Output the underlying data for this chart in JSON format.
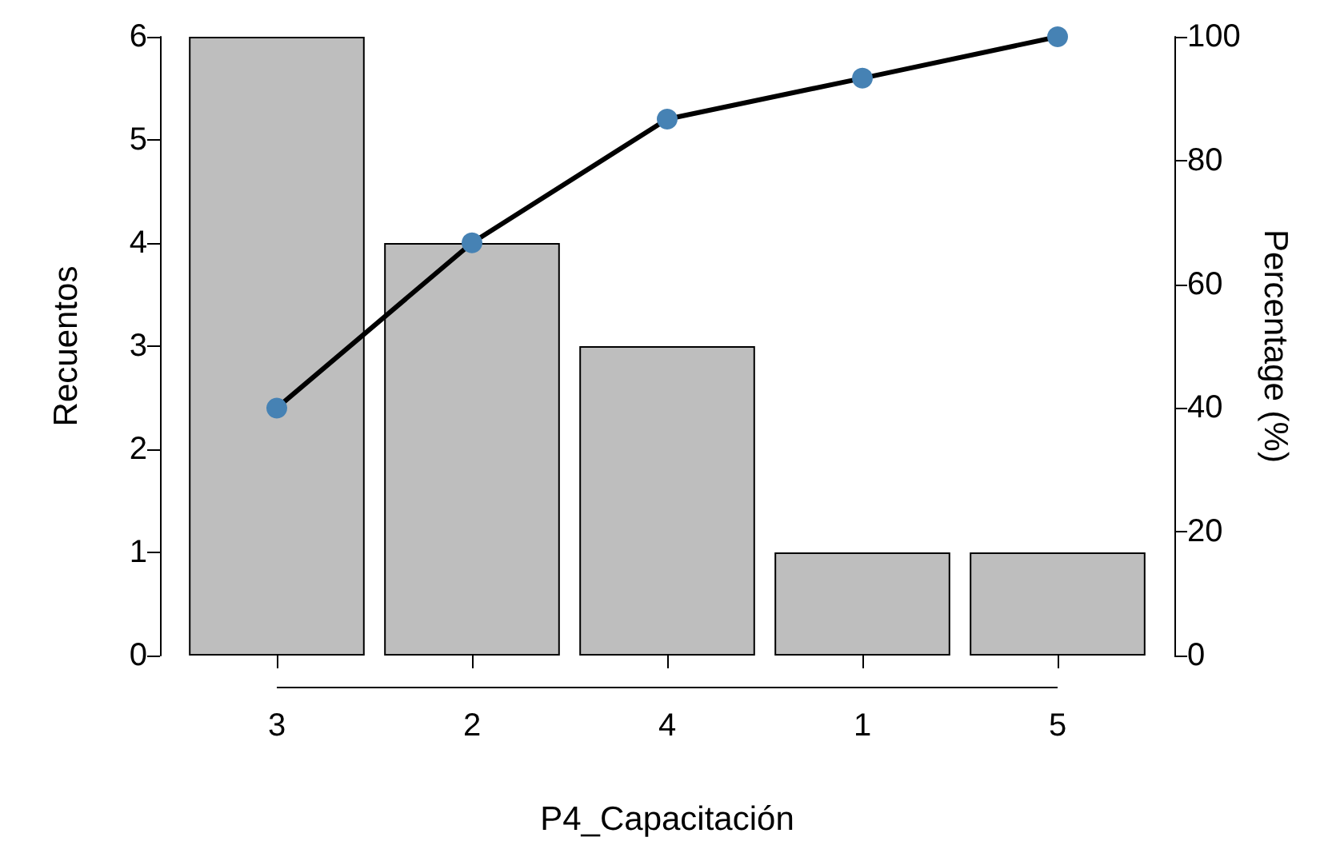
{
  "chart_data": {
    "type": "bar",
    "xlabel": "P4_Capacitación",
    "ylabel": "Recuentos",
    "y2label": "Percentage (%)",
    "categories": [
      "3",
      "2",
      "4",
      "1",
      "5"
    ],
    "series": [
      {
        "color": "#bebebe",
        "values": [
          6,
          4,
          3,
          1,
          1
        ]
      },
      {
        "type": "line",
        "axis": "y2",
        "color": "#4682b4",
        "values": [
          40,
          66.7,
          86.7,
          93.3,
          100
        ]
      }
    ],
    "ylim": [
      0,
      6
    ],
    "yticks": [
      0,
      1,
      2,
      3,
      4,
      5,
      6
    ],
    "y2lim": [
      0,
      100
    ],
    "y2ticks": [
      0,
      20,
      40,
      60,
      80,
      100
    ],
    "grid": false,
    "marker": "circle",
    "line_style": "solid"
  }
}
